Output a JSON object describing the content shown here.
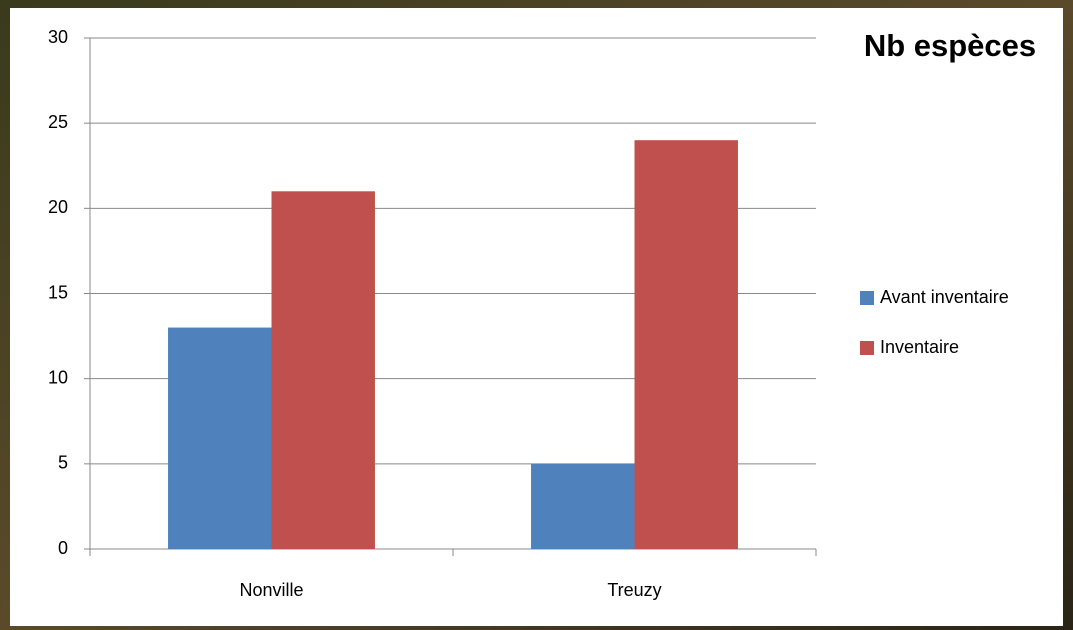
{
  "chart_data": {
    "type": "bar",
    "title": "Nb espèces",
    "categories": [
      "Nonville",
      "Treuzy"
    ],
    "series": [
      {
        "name": "Avant inventaire",
        "color": "#4f81bd",
        "values": [
          13,
          5
        ]
      },
      {
        "name": "Inventaire",
        "color": "#c0504d",
        "values": [
          21,
          24
        ]
      }
    ],
    "ylim": [
      0,
      30
    ],
    "yticks": [
      0,
      5,
      10,
      15,
      20,
      25,
      30
    ],
    "grid": true,
    "legend": "right"
  }
}
